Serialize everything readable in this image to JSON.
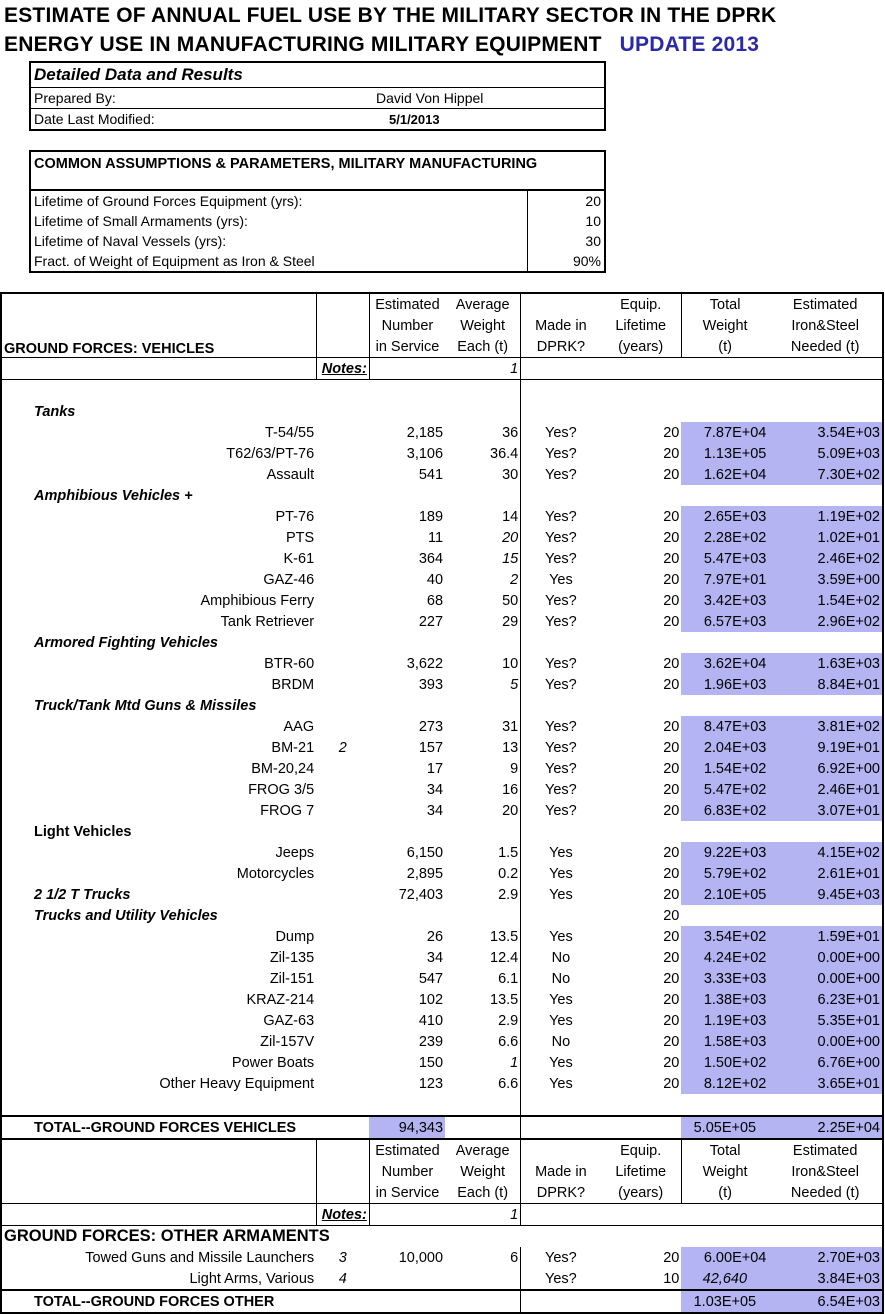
{
  "title": {
    "line1": "ESTIMATE OF ANNUAL FUEL USE BY THE MILITARY SECTOR IN THE DPRK",
    "line2": "ENERGY USE IN MANUFACTURING MILITARY EQUIPMENT",
    "update": "UPDATE 2013"
  },
  "details": {
    "heading": "Detailed Data and Results",
    "prepared_label": "Prepared By:",
    "prepared_value": "David Von Hippel",
    "modified_label": "Date Last Modified:",
    "modified_value": "5/1/2013"
  },
  "assumptions": {
    "heading": "COMMON ASSUMPTIONS & PARAMETERS, MILITARY MANUFACTURING",
    "rows": [
      {
        "label": "Lifetime of Ground Forces Equipment (yrs):",
        "value": "20"
      },
      {
        "label": "Lifetime of Small Armaments (yrs):",
        "value": "10"
      },
      {
        "label": "Lifetime of Naval Vessels (yrs):",
        "value": "30"
      },
      {
        "label": "Fract. of Weight of Equipment as Iron & Steel",
        "value": "90%"
      }
    ]
  },
  "columns": {
    "h1": [
      "Estimated",
      "Average",
      "",
      "Equip.",
      "Total",
      "Estimated"
    ],
    "h2": [
      "Number",
      "Weight",
      "Made in",
      "Lifetime",
      "Weight",
      "Iron&Steel"
    ],
    "h3": [
      "in Service",
      "Each (t)",
      "DPRK?",
      "(years)",
      "(t)",
      "Needed (t)"
    ]
  },
  "notes_label": "Notes:",
  "notes_value": "1",
  "ground_vehicles": {
    "heading": "GROUND FORCES: VEHICLES",
    "rows": [
      {
        "kind": "cat",
        "label": "Tanks"
      },
      {
        "label": "T-54/55",
        "note": "",
        "num": "2,185",
        "wt": "36",
        "wti": false,
        "made": "Yes?",
        "life": "20",
        "total": "7.87E+04",
        "iron": "3.54E+03"
      },
      {
        "label": "T62/63/PT-76",
        "note": "",
        "num": "3,106",
        "wt": "36.4",
        "wti": false,
        "made": "Yes?",
        "life": "20",
        "total": "1.13E+05",
        "iron": "5.09E+03"
      },
      {
        "label": "Assault",
        "note": "",
        "num": "541",
        "wt": "30",
        "wti": false,
        "made": "Yes?",
        "life": "20",
        "total": "1.62E+04",
        "iron": "7.30E+02"
      },
      {
        "kind": "cat",
        "label": "Amphibious Vehicles +"
      },
      {
        "label": "PT-76",
        "note": "",
        "num": "189",
        "wt": "14",
        "wti": false,
        "made": "Yes?",
        "life": "20",
        "total": "2.65E+03",
        "iron": "1.19E+02"
      },
      {
        "label": "PTS",
        "note": "",
        "num": "11",
        "wt": "20",
        "wti": true,
        "made": "Yes?",
        "life": "20",
        "total": "2.28E+02",
        "iron": "1.02E+01"
      },
      {
        "label": "K-61",
        "note": "",
        "num": "364",
        "wt": "15",
        "wti": true,
        "made": "Yes?",
        "life": "20",
        "total": "5.47E+03",
        "iron": "2.46E+02"
      },
      {
        "label": "GAZ-46",
        "note": "",
        "num": "40",
        "wt": "2",
        "wti": true,
        "made": "Yes",
        "life": "20",
        "total": "7.97E+01",
        "iron": "3.59E+00"
      },
      {
        "label": "Amphibious Ferry",
        "note": "",
        "num": "68",
        "wt": "50",
        "wti": false,
        "made": "Yes?",
        "life": "20",
        "total": "3.42E+03",
        "iron": "1.54E+02"
      },
      {
        "label": "Tank Retriever",
        "note": "",
        "num": "227",
        "wt": "29",
        "wti": false,
        "made": "Yes?",
        "life": "20",
        "total": "6.57E+03",
        "iron": "2.96E+02"
      },
      {
        "kind": "cat",
        "label": "Armored Fighting Vehicles"
      },
      {
        "label": "BTR-60",
        "note": "",
        "num": "3,622",
        "wt": "10",
        "wti": false,
        "made": "Yes?",
        "life": "20",
        "total": "3.62E+04",
        "iron": "1.63E+03"
      },
      {
        "label": "BRDM",
        "note": "",
        "num": "393",
        "wt": "5",
        "wti": true,
        "made": "Yes?",
        "life": "20",
        "total": "1.96E+03",
        "iron": "8.84E+01"
      },
      {
        "kind": "cat",
        "label": "Truck/Tank Mtd Guns & Missiles"
      },
      {
        "label": "AAG",
        "note": "",
        "num": "273",
        "wt": "31",
        "wti": false,
        "made": "Yes?",
        "life": "20",
        "total": "8.47E+03",
        "iron": "3.81E+02"
      },
      {
        "label": "BM-21",
        "note": "2",
        "num": "157",
        "wt": "13",
        "wti": false,
        "made": "Yes?",
        "life": "20",
        "total": "2.04E+03",
        "iron": "9.19E+01"
      },
      {
        "label": "BM-20,24",
        "note": "",
        "num": "17",
        "wt": "9",
        "wti": false,
        "made": "Yes?",
        "life": "20",
        "total": "1.54E+02",
        "iron": "6.92E+00"
      },
      {
        "label": "FROG 3/5",
        "note": "",
        "num": "34",
        "wt": "16",
        "wti": false,
        "made": "Yes?",
        "life": "20",
        "total": "5.47E+02",
        "iron": "2.46E+01"
      },
      {
        "label": "FROG 7",
        "note": "",
        "num": "34",
        "wt": "20",
        "wti": false,
        "made": "Yes?",
        "life": "20",
        "total": "6.83E+02",
        "iron": "3.07E+01"
      },
      {
        "kind": "cat2",
        "label": "Light Vehicles"
      },
      {
        "label": "Jeeps",
        "note": "",
        "num": "6,150",
        "wt": "1.5",
        "wti": false,
        "made": "Yes",
        "life": "20",
        "total": "9.22E+03",
        "iron": "4.15E+02"
      },
      {
        "label": "Motorcycles",
        "note": "",
        "num": "2,895",
        "wt": "0.2",
        "wti": false,
        "made": "Yes",
        "life": "20",
        "total": "5.79E+02",
        "iron": "2.61E+01"
      },
      {
        "kind": "catrow",
        "label": "2 1/2 T Trucks",
        "num": "72,403",
        "wt": "2.9",
        "made": "Yes",
        "life": "20",
        "total": "2.10E+05",
        "iron": "9.45E+03"
      },
      {
        "kind": "catlife",
        "label": "Trucks and Utility Vehicles",
        "life": "20"
      },
      {
        "label": "Dump",
        "note": "",
        "num": "26",
        "wt": "13.5",
        "wti": false,
        "made": "Yes",
        "life": "20",
        "total": "3.54E+02",
        "iron": "1.59E+01"
      },
      {
        "label": "Zil-135",
        "note": "",
        "num": "34",
        "wt": "12.4",
        "wti": false,
        "made": "No",
        "life": "20",
        "total": "4.24E+02",
        "iron": "0.00E+00"
      },
      {
        "label": "Zil-151",
        "note": "",
        "num": "547",
        "wt": "6.1",
        "wti": false,
        "made": "No",
        "life": "20",
        "total": "3.33E+03",
        "iron": "0.00E+00"
      },
      {
        "label": "KRAZ-214",
        "note": "",
        "num": "102",
        "wt": "13.5",
        "wti": false,
        "made": "Yes",
        "life": "20",
        "total": "1.38E+03",
        "iron": "6.23E+01"
      },
      {
        "label": "GAZ-63",
        "note": "",
        "num": "410",
        "wt": "2.9",
        "wti": false,
        "made": "Yes",
        "life": "20",
        "total": "1.19E+03",
        "iron": "5.35E+01"
      },
      {
        "label": "Zil-157V",
        "note": "",
        "num": "239",
        "wt": "6.6",
        "wti": false,
        "made": "No",
        "life": "20",
        "total": "1.58E+03",
        "iron": "0.00E+00"
      },
      {
        "label": "Power Boats",
        "note": "",
        "num": "150",
        "wt": "1",
        "wti": true,
        "made": "Yes",
        "life": "20",
        "total": "1.50E+02",
        "iron": "6.76E+00"
      },
      {
        "label": "Other Heavy Equipment",
        "note": "",
        "num": "123",
        "wt": "6.6",
        "wti": false,
        "made": "Yes",
        "life": "20",
        "total": "8.12E+02",
        "iron": "3.65E+01"
      }
    ],
    "total": {
      "label": "TOTAL--GROUND FORCES VEHICLES",
      "num": "94,343",
      "total": "5.05E+05",
      "iron": "2.25E+04"
    }
  },
  "other_arms": {
    "heading": "GROUND FORCES: OTHER ARMAMENTS",
    "rows": [
      {
        "label": "Towed Guns and Missile Launchers",
        "note": "3",
        "num": "10,000",
        "wt": "6",
        "made": "Yes?",
        "life": "20",
        "total": "6.00E+04",
        "total_italic": false,
        "iron": "2.70E+03"
      },
      {
        "label": "Light Arms, Various",
        "note": "4",
        "num": "",
        "wt": "",
        "made": "Yes?",
        "life": "10",
        "total": "42,640",
        "total_italic": true,
        "iron": "3.84E+03"
      }
    ],
    "total": {
      "label": "TOTAL--GROUND FORCES OTHER",
      "total": "1.03E+05",
      "iron": "6.54E+03"
    }
  }
}
